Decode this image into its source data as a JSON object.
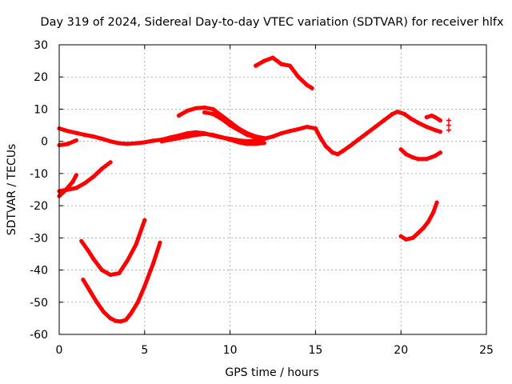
{
  "chart_data": {
    "type": "scatter",
    "title": "Day 319 of 2024, Sidereal Day-to-day VTEC variation (SDTVAR) for receiver hlfx",
    "xlabel": "GPS time / hours",
    "ylabel": "SDTVAR / TECUs",
    "xlim": [
      0,
      25
    ],
    "ylim": [
      -60,
      30
    ],
    "xticks": [
      0,
      5,
      10,
      15,
      20,
      25
    ],
    "yticks": [
      -60,
      -50,
      -40,
      -30,
      -20,
      -10,
      0,
      10,
      20,
      30
    ],
    "grid": true,
    "marker_color": "#ff0000",
    "series": [
      {
        "name": "arc-main",
        "x": [
          0.0,
          0.5,
          1.0,
          1.5,
          2.0,
          2.5,
          3.0,
          3.5,
          4.0,
          4.5,
          5.0,
          5.5,
          6.0,
          6.5,
          7.0,
          7.5,
          8.0,
          8.5,
          9.0,
          9.5,
          10.0,
          10.5,
          11.0,
          11.5,
          12.0,
          12.5,
          13.0,
          13.5,
          14.0,
          14.5,
          15.0,
          15.3,
          15.6,
          16.0,
          16.3,
          16.6,
          17.0,
          17.5,
          18.0,
          18.5,
          19.0,
          19.5,
          19.8,
          20.2,
          20.6,
          21.0,
          21.5,
          22.0,
          22.3
        ],
        "y": [
          4,
          3.2,
          2.6,
          2,
          1.5,
          0.8,
          0,
          -0.6,
          -0.8,
          -0.6,
          -0.3,
          0.2,
          0.5,
          1.2,
          1.8,
          2.5,
          2.8,
          2.5,
          1.8,
          1.2,
          0.8,
          0.3,
          0,
          0.2,
          0.8,
          1.5,
          2.5,
          3.2,
          3.8,
          4.5,
          4,
          1,
          -1.5,
          -3.5,
          -4,
          -3,
          -1.5,
          0.5,
          2.5,
          4.5,
          6.5,
          8.5,
          9.2,
          8.5,
          7,
          5.8,
          4.5,
          3.5,
          3
        ]
      },
      {
        "name": "arc-upper-a",
        "x": [
          7.0,
          7.5,
          8.0,
          8.5,
          9.0,
          9.5,
          10.0,
          10.5,
          11.0,
          11.5,
          12.0
        ],
        "y": [
          8,
          9.5,
          10.3,
          10.5,
          10,
          8,
          6,
          4,
          2.5,
          1.5,
          1
        ]
      },
      {
        "name": "arc-upper-b",
        "x": [
          8.5,
          9.0,
          9.5,
          10.0,
          10.5,
          11.0,
          11.5
        ],
        "y": [
          9,
          8.5,
          7,
          5,
          3.5,
          2,
          1.2
        ]
      },
      {
        "name": "arc-top",
        "x": [
          11.5,
          12.0,
          12.5,
          13.0,
          13.5,
          14.0,
          14.5,
          14.8
        ],
        "y": [
          23.5,
          25,
          26,
          24,
          23.5,
          20,
          17.5,
          16.5
        ]
      },
      {
        "name": "arc-flat",
        "x": [
          6.0,
          6.5,
          7.0,
          7.5,
          8.0,
          8.5,
          9.0,
          9.5,
          10.0,
          10.5,
          11.0,
          11.5,
          12.0
        ],
        "y": [
          0,
          0.5,
          1,
          1.5,
          2,
          2.3,
          2,
          1.3,
          0.5,
          -0.3,
          -0.8,
          -0.8,
          -0.5
        ]
      },
      {
        "name": "arc-short",
        "x": [
          0.0,
          0.5,
          1.0
        ],
        "y": [
          -1.2,
          -0.8,
          0.3
        ]
      },
      {
        "name": "arc-neg15",
        "x": [
          0.0,
          0.5,
          1.0,
          1.5,
          2.0,
          2.5,
          3.0
        ],
        "y": [
          -15.5,
          -15,
          -14.5,
          -13,
          -11,
          -8.5,
          -6.5
        ]
      },
      {
        "name": "arc-neg15-tail",
        "x": [
          0.0,
          0.4,
          0.8,
          1.0
        ],
        "y": [
          -17,
          -15,
          -12.5,
          -10.5
        ]
      },
      {
        "name": "arc-bowl-upper",
        "x": [
          1.3,
          1.7,
          2.0,
          2.5,
          3.0,
          3.5,
          4.0,
          4.5,
          5.0
        ],
        "y": [
          -31,
          -34,
          -36.5,
          -40,
          -41.5,
          -41,
          -37,
          -32,
          -24.5
        ]
      },
      {
        "name": "arc-bowl-lower",
        "x": [
          1.4,
          1.8,
          2.2,
          2.6,
          3.0,
          3.3,
          3.6,
          3.9,
          4.2,
          4.6,
          5.0,
          5.5,
          5.9
        ],
        "y": [
          -43,
          -46.5,
          -50,
          -53,
          -55,
          -55.8,
          -56,
          -55.5,
          -53.5,
          -50,
          -45,
          -38,
          -31.5
        ]
      },
      {
        "name": "arc-right-mid",
        "x": [
          20.0,
          20.3,
          20.7,
          21.0,
          21.5,
          22.0,
          22.3
        ],
        "y": [
          -2.5,
          -4,
          -5,
          -5.5,
          -5.5,
          -4.5,
          -3.5
        ]
      },
      {
        "name": "arc-right-low",
        "x": [
          20.0,
          20.3,
          20.7,
          21.0,
          21.3,
          21.6,
          21.9,
          22.1
        ],
        "y": [
          -29.5,
          -30.5,
          -30,
          -28.5,
          -27,
          -25,
          -22,
          -19
        ]
      },
      {
        "name": "arc-right-upper",
        "x": [
          21.5,
          21.8,
          22.0,
          22.3
        ],
        "y": [
          7.5,
          8,
          7.5,
          6.5
        ]
      },
      {
        "name": "arc-dots",
        "x": [
          22.8,
          22.8,
          22.8
        ],
        "y": [
          6.5,
          5,
          3.5
        ]
      }
    ]
  }
}
